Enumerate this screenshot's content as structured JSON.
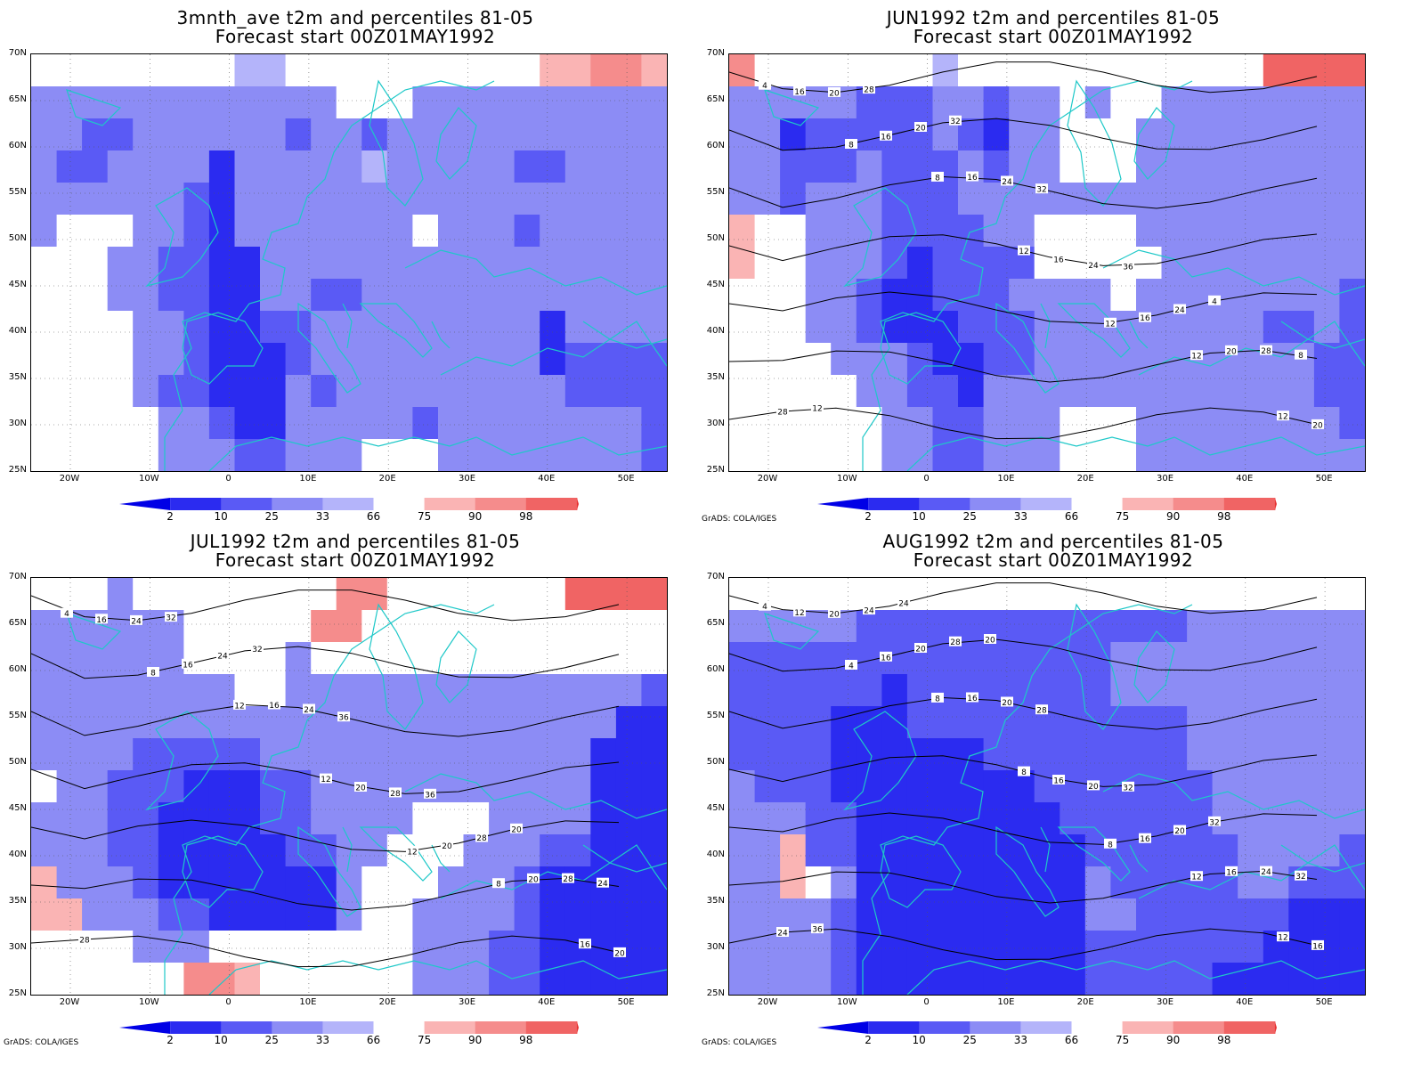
{
  "credit_text": "GrADS: COLA/IGES",
  "lat_labels": [
    "70N",
    "65N",
    "60N",
    "55N",
    "50N",
    "45N",
    "40N",
    "35N",
    "30N",
    "25N"
  ],
  "lon_labels": [
    "20W",
    "10W",
    "0",
    "10E",
    "20E",
    "30E",
    "40E",
    "50E"
  ],
  "colorbar": {
    "labels": [
      "2",
      "10",
      "25",
      "33",
      "66",
      "75",
      "90",
      "98"
    ],
    "colors": [
      "#0000e6",
      "#2b2bf0",
      "#5a5af5",
      "#8c8cf5",
      "#b4b4fa",
      "#ffffff",
      "#fab4b4",
      "#f58c8c",
      "#f06464",
      "#e63232"
    ]
  },
  "coast_color": "#1ec8c8",
  "panels": [
    {
      "id": "p1",
      "title_line1": "3mnth_ave t2m and percentiles 81-05",
      "title_line2": "Forecast start 00Z01MAY1992",
      "show_credit": false,
      "contour_labels": []
    },
    {
      "id": "p2",
      "title_line1": "JUN1992 t2m and percentiles 81-05",
      "title_line2": "Forecast start 00Z01MAY1992",
      "show_credit": true,
      "contour_labels": [
        "4",
        "8",
        "8",
        "12",
        "12",
        "12",
        "12",
        "16",
        "16",
        "16",
        "16",
        "16",
        "20",
        "20",
        "20",
        "20",
        "24",
        "24",
        "24",
        "28",
        "28",
        "28",
        "32",
        "32",
        "36",
        "4",
        "8",
        "12"
      ]
    },
    {
      "id": "p3",
      "title_line1": "JUL1992 t2m and percentiles 81-05",
      "title_line2": "Forecast start 00Z01MAY1992",
      "show_credit": true,
      "contour_labels": [
        "4",
        "8",
        "12",
        "12",
        "12",
        "8",
        "16",
        "16",
        "16",
        "16",
        "20",
        "20",
        "20",
        "20",
        "24",
        "24",
        "24",
        "28",
        "28",
        "28",
        "28",
        "32",
        "32",
        "36",
        "36",
        "20",
        "24"
      ]
    },
    {
      "id": "p4",
      "title_line1": "AUG1992 t2m and percentiles 81-05",
      "title_line2": "Forecast start 00Z01MAY1992",
      "show_credit": true,
      "contour_labels": [
        "4",
        "4",
        "8",
        "8",
        "8",
        "12",
        "12",
        "12",
        "16",
        "16",
        "16",
        "16",
        "16",
        "16",
        "20",
        "20",
        "20",
        "20",
        "20",
        "24",
        "24",
        "24",
        "28",
        "28",
        "32",
        "32",
        "32",
        "36",
        "24",
        "20"
      ]
    }
  ]
}
